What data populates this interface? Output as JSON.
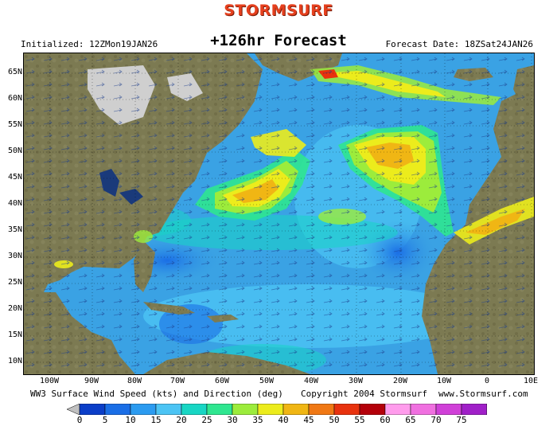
{
  "header": {
    "logo": "STORMSURF",
    "title": "+126hr Forecast",
    "initialized": "Initialized: 12ZMon19JAN26",
    "forecast_date": "Forecast Date: 18ZSat24JAN26"
  },
  "footer": {
    "description": "WW3 Surface Wind Speed (kts) and Direction (deg)",
    "copyright": "Copyright 2004 Stormsurf",
    "website": "www.Stormsurf.com"
  },
  "map": {
    "lat_labels": [
      "65N",
      "60N",
      "55N",
      "50N",
      "45N",
      "40N",
      "35N",
      "30N",
      "25N",
      "20N",
      "15N",
      "10N"
    ],
    "lon_labels": [
      "100W",
      "90W",
      "80W",
      "70W",
      "60W",
      "50W",
      "40W",
      "30W",
      "20W",
      "10W",
      "0",
      "10E"
    ],
    "legend_ticks": [
      "0",
      "5",
      "10",
      "15",
      "20",
      "25",
      "30",
      "35",
      "40",
      "45",
      "50",
      "55",
      "60",
      "65",
      "70",
      "75"
    ],
    "legend_colors": [
      "#0b3ec8",
      "#1a6ee6",
      "#2b9bf0",
      "#4cc4f4",
      "#18d6c4",
      "#2fe690",
      "#9cec3c",
      "#ecec1c",
      "#f0b614",
      "#f07814",
      "#e8320e",
      "#b4000a",
      "#ff9cec",
      "#f070e0",
      "#d040d8",
      "#a020c8"
    ],
    "legend_under_color": "#c0c0c0",
    "legend_over_color": "#a020c8",
    "land_color": "#7c7a52",
    "ice_color": "#cfcfcf",
    "ocean_base_color": "#3aa2e4"
  }
}
